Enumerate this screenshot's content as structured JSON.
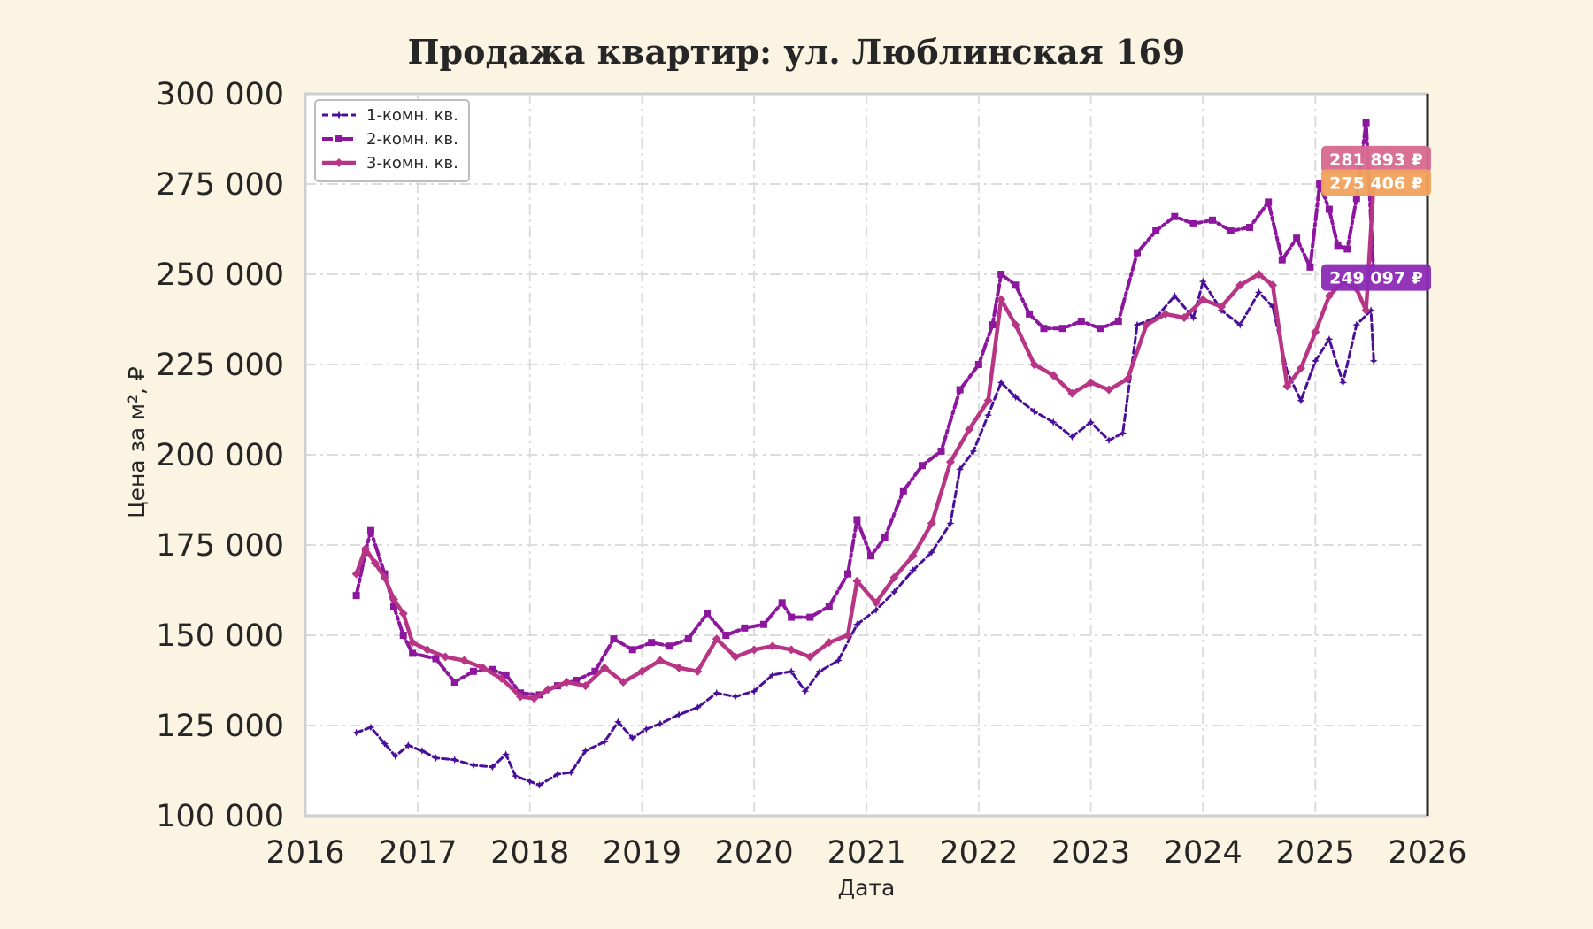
{
  "chart_data": {
    "type": "line",
    "title": "Продажа квартир: ул. Люблинская 169",
    "xlabel": "Дата",
    "ylabel": "Цена за м², ₽",
    "xlim": [
      "2016-01-01",
      "2026-01-01"
    ],
    "ylim": [
      100000,
      300000
    ],
    "x_ticks": [
      "2016",
      "2017",
      "2018",
      "2019",
      "2020",
      "2021",
      "2022",
      "2023",
      "2024",
      "2025",
      "2026"
    ],
    "y_ticks": [
      "100 000",
      "125 000",
      "150 000",
      "175 000",
      "200 000",
      "225 000",
      "250 000",
      "275 000",
      "300 000"
    ],
    "y_tick_values": [
      100000,
      125000,
      150000,
      175000,
      200000,
      225000,
      250000,
      275000,
      300000
    ],
    "grid": true,
    "legend_position": "top-left",
    "series": [
      {
        "name": "1-комн. кв.",
        "color": "#4a0f99",
        "marker": "star",
        "points": [
          [
            "2016-06-15",
            123000
          ],
          [
            "2016-08-01",
            124500
          ],
          [
            "2016-09-15",
            120000
          ],
          [
            "2016-10-20",
            116500
          ],
          [
            "2016-12-01",
            119500
          ],
          [
            "2017-01-15",
            118000
          ],
          [
            "2017-03-01",
            116000
          ],
          [
            "2017-05-01",
            115500
          ],
          [
            "2017-07-01",
            114000
          ],
          [
            "2017-09-01",
            113500
          ],
          [
            "2017-10-15",
            117000
          ],
          [
            "2017-11-15",
            111000
          ],
          [
            "2018-01-01",
            109500
          ],
          [
            "2018-02-01",
            108500
          ],
          [
            "2018-04-01",
            111500
          ],
          [
            "2018-05-15",
            112000
          ],
          [
            "2018-07-01",
            118000
          ],
          [
            "2018-09-01",
            120500
          ],
          [
            "2018-10-15",
            126000
          ],
          [
            "2018-12-01",
            121500
          ],
          [
            "2019-01-15",
            124000
          ],
          [
            "2019-03-01",
            125500
          ],
          [
            "2019-05-01",
            128000
          ],
          [
            "2019-07-01",
            130000
          ],
          [
            "2019-09-01",
            134000
          ],
          [
            "2019-11-01",
            133000
          ],
          [
            "2020-01-01",
            134500
          ],
          [
            "2020-03-01",
            139000
          ],
          [
            "2020-05-01",
            140000
          ],
          [
            "2020-06-15",
            134500
          ],
          [
            "2020-08-01",
            140000
          ],
          [
            "2020-10-01",
            143000
          ],
          [
            "2020-12-01",
            153000
          ],
          [
            "2021-02-01",
            157000
          ],
          [
            "2021-04-01",
            162000
          ],
          [
            "2021-06-01",
            168000
          ],
          [
            "2021-08-01",
            173000
          ],
          [
            "2021-10-01",
            181000
          ],
          [
            "2021-11-01",
            196000
          ],
          [
            "2021-12-15",
            201000
          ],
          [
            "2022-02-01",
            211000
          ],
          [
            "2022-03-15",
            220000
          ],
          [
            "2022-05-01",
            216000
          ],
          [
            "2022-07-01",
            212000
          ],
          [
            "2022-09-01",
            209000
          ],
          [
            "2022-11-01",
            205000
          ],
          [
            "2023-01-01",
            209000
          ],
          [
            "2023-03-01",
            204000
          ],
          [
            "2023-04-15",
            206000
          ],
          [
            "2023-06-01",
            236000
          ],
          [
            "2023-08-01",
            238000
          ],
          [
            "2023-10-01",
            244000
          ],
          [
            "2023-12-01",
            238000
          ],
          [
            "2024-01-01",
            248000
          ],
          [
            "2024-03-01",
            240000
          ],
          [
            "2024-05-01",
            236000
          ],
          [
            "2024-07-01",
            245000
          ],
          [
            "2024-08-15",
            241000
          ],
          [
            "2024-10-01",
            223000
          ],
          [
            "2024-11-15",
            215000
          ],
          [
            "2025-01-01",
            226000
          ],
          [
            "2025-02-15",
            232000
          ],
          [
            "2025-04-01",
            220000
          ],
          [
            "2025-05-15",
            236000
          ],
          [
            "2025-07-01",
            240000
          ],
          [
            "2025-07-10",
            226000
          ]
        ]
      },
      {
        "name": "2-комн. кв.",
        "color": "#8c169e",
        "marker": "square",
        "points": [
          [
            "2016-06-15",
            161000
          ],
          [
            "2016-07-15",
            173000
          ],
          [
            "2016-08-01",
            179000
          ],
          [
            "2016-09-15",
            167000
          ],
          [
            "2016-10-15",
            158000
          ],
          [
            "2016-11-15",
            150000
          ],
          [
            "2016-12-15",
            145000
          ],
          [
            "2017-03-01",
            143500
          ],
          [
            "2017-05-01",
            137000
          ],
          [
            "2017-07-01",
            140000
          ],
          [
            "2017-09-01",
            140500
          ],
          [
            "2017-10-15",
            139000
          ],
          [
            "2017-12-01",
            134000
          ],
          [
            "2018-02-01",
            133500
          ],
          [
            "2018-04-01",
            136000
          ],
          [
            "2018-06-01",
            137500
          ],
          [
            "2018-08-01",
            140000
          ],
          [
            "2018-10-01",
            149000
          ],
          [
            "2018-12-01",
            146000
          ],
          [
            "2019-02-01",
            148000
          ],
          [
            "2019-04-01",
            147000
          ],
          [
            "2019-06-01",
            149000
          ],
          [
            "2019-08-01",
            156000
          ],
          [
            "2019-10-01",
            150000
          ],
          [
            "2019-12-01",
            152000
          ],
          [
            "2020-02-01",
            153000
          ],
          [
            "2020-04-01",
            159000
          ],
          [
            "2020-05-01",
            155000
          ],
          [
            "2020-07-01",
            155000
          ],
          [
            "2020-09-01",
            158000
          ],
          [
            "2020-11-01",
            167000
          ],
          [
            "2020-12-01",
            182000
          ],
          [
            "2021-01-15",
            172000
          ],
          [
            "2021-03-01",
            177000
          ],
          [
            "2021-05-01",
            190000
          ],
          [
            "2021-07-01",
            197000
          ],
          [
            "2021-09-01",
            201000
          ],
          [
            "2021-11-01",
            218000
          ],
          [
            "2022-01-01",
            225000
          ],
          [
            "2022-02-15",
            236000
          ],
          [
            "2022-03-15",
            250000
          ],
          [
            "2022-05-01",
            247000
          ],
          [
            "2022-06-15",
            239000
          ],
          [
            "2022-08-01",
            235000
          ],
          [
            "2022-10-01",
            235000
          ],
          [
            "2022-12-01",
            237000
          ],
          [
            "2023-02-01",
            235000
          ],
          [
            "2023-04-01",
            237000
          ],
          [
            "2023-06-01",
            256000
          ],
          [
            "2023-08-01",
            262000
          ],
          [
            "2023-10-01",
            266000
          ],
          [
            "2023-12-01",
            264000
          ],
          [
            "2024-02-01",
            265000
          ],
          [
            "2024-04-01",
            262000
          ],
          [
            "2024-06-01",
            263000
          ],
          [
            "2024-08-01",
            270000
          ],
          [
            "2024-09-15",
            254000
          ],
          [
            "2024-11-01",
            260000
          ],
          [
            "2024-12-15",
            252000
          ],
          [
            "2025-01-15",
            275000
          ],
          [
            "2025-02-15",
            268000
          ],
          [
            "2025-03-15",
            258000
          ],
          [
            "2025-04-15",
            257000
          ],
          [
            "2025-05-15",
            271000
          ],
          [
            "2025-06-15",
            292000
          ],
          [
            "2025-07-10",
            249097
          ]
        ]
      },
      {
        "name": "3-комн. кв.",
        "color": "#b83585",
        "marker": "diamond",
        "points": [
          [
            "2016-06-15",
            167000
          ],
          [
            "2016-07-15",
            174000
          ],
          [
            "2016-08-15",
            170000
          ],
          [
            "2016-09-15",
            166000
          ],
          [
            "2016-10-15",
            160000
          ],
          [
            "2016-11-15",
            156000
          ],
          [
            "2016-12-15",
            148000
          ],
          [
            "2017-02-01",
            146000
          ],
          [
            "2017-04-01",
            144000
          ],
          [
            "2017-06-01",
            143000
          ],
          [
            "2017-08-01",
            141000
          ],
          [
            "2017-10-01",
            138000
          ],
          [
            "2017-12-01",
            133000
          ],
          [
            "2018-01-15",
            132500
          ],
          [
            "2018-03-01",
            135000
          ],
          [
            "2018-05-01",
            137000
          ],
          [
            "2018-07-01",
            136000
          ],
          [
            "2018-09-01",
            141000
          ],
          [
            "2018-11-01",
            137000
          ],
          [
            "2019-01-01",
            140000
          ],
          [
            "2019-03-01",
            143000
          ],
          [
            "2019-05-01",
            141000
          ],
          [
            "2019-07-01",
            140000
          ],
          [
            "2019-09-01",
            149000
          ],
          [
            "2019-11-01",
            144000
          ],
          [
            "2020-01-01",
            146000
          ],
          [
            "2020-03-01",
            147000
          ],
          [
            "2020-05-01",
            146000
          ],
          [
            "2020-07-01",
            144000
          ],
          [
            "2020-09-01",
            148000
          ],
          [
            "2020-11-01",
            150000
          ],
          [
            "2020-12-01",
            165000
          ],
          [
            "2021-02-01",
            159000
          ],
          [
            "2021-04-01",
            166000
          ],
          [
            "2021-06-01",
            172000
          ],
          [
            "2021-08-01",
            181000
          ],
          [
            "2021-10-01",
            198000
          ],
          [
            "2021-12-01",
            207000
          ],
          [
            "2022-02-01",
            215000
          ],
          [
            "2022-03-15",
            243000
          ],
          [
            "2022-05-01",
            236000
          ],
          [
            "2022-07-01",
            225000
          ],
          [
            "2022-09-01",
            222000
          ],
          [
            "2022-11-01",
            217000
          ],
          [
            "2023-01-01",
            220000
          ],
          [
            "2023-03-01",
            218000
          ],
          [
            "2023-05-01",
            221000
          ],
          [
            "2023-07-01",
            236000
          ],
          [
            "2023-09-01",
            239000
          ],
          [
            "2023-11-01",
            238000
          ],
          [
            "2024-01-01",
            243000
          ],
          [
            "2024-03-01",
            241000
          ],
          [
            "2024-05-01",
            247000
          ],
          [
            "2024-07-01",
            250000
          ],
          [
            "2024-08-15",
            247000
          ],
          [
            "2024-10-01",
            219000
          ],
          [
            "2024-11-15",
            224000
          ],
          [
            "2025-01-01",
            234000
          ],
          [
            "2025-02-15",
            244000
          ],
          [
            "2025-04-01",
            248000
          ],
          [
            "2025-05-15",
            246000
          ],
          [
            "2025-06-15",
            240000
          ],
          [
            "2025-07-10",
            275406
          ]
        ]
      }
    ],
    "annotations": [
      {
        "label": "281 893 ₽",
        "color": "#d7698f",
        "value": 281893
      },
      {
        "label": "275 406 ₽",
        "color": "#f0a15c",
        "value": 275406
      },
      {
        "label": "249 097 ₽",
        "color": "#8c2ab5",
        "value": 249097
      }
    ]
  }
}
